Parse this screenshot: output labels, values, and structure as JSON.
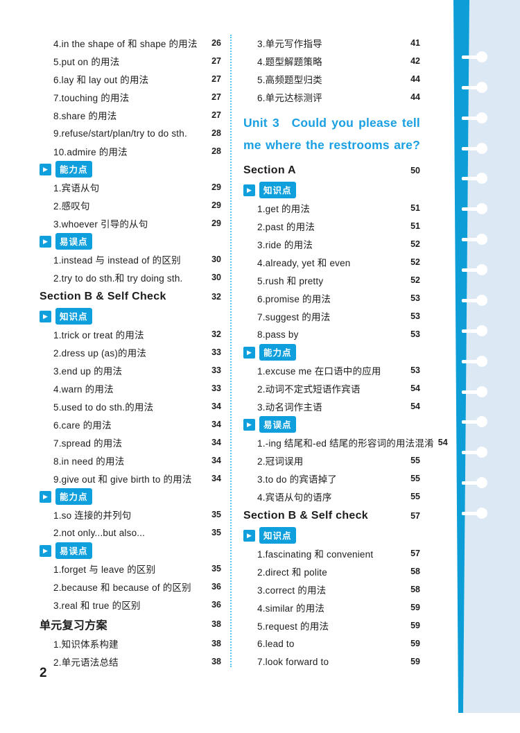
{
  "page": {
    "number": "2"
  },
  "colors": {
    "accent_blue": "#0f9fdc",
    "unit_title_blue": "#1aa0e2",
    "binding_stripe": "#0d9ed8",
    "binding_panel": "#dce9f5",
    "divider_dotted": "#4ec4ee",
    "text": "#1d1d1d"
  },
  "badges": {
    "ability": "能力点",
    "error_prone": "易误点",
    "knowledge": "知识点"
  },
  "columns": {
    "left": {
      "rows": [
        {
          "type": "item",
          "text": "4.in the shape of 和 shape 的用法",
          "page": "26"
        },
        {
          "type": "item",
          "text": "5.put on 的用法",
          "page": "27"
        },
        {
          "type": "item",
          "text": "6.lay 和 lay out 的用法",
          "page": "27"
        },
        {
          "type": "item",
          "text": "7.touching 的用法",
          "page": "27"
        },
        {
          "type": "item",
          "text": "8.share 的用法",
          "page": "27"
        },
        {
          "type": "item",
          "text": "9.refuse/start/plan/try to do sth.",
          "page": "28"
        },
        {
          "type": "item",
          "text": "10.admire 的用法",
          "page": "28"
        },
        {
          "type": "badge",
          "label": "能力点"
        },
        {
          "type": "item",
          "text": "1.宾语从句",
          "page": "29"
        },
        {
          "type": "item",
          "text": "2.感叹句",
          "page": "29"
        },
        {
          "type": "item",
          "text": "3.whoever 引导的从句",
          "page": "29"
        },
        {
          "type": "badge",
          "label": "易误点"
        },
        {
          "type": "item",
          "text": "1.instead 与 instead of 的区别",
          "page": "30"
        },
        {
          "type": "item",
          "text": "2.try to do sth.和 try doing sth.",
          "page": "30"
        },
        {
          "type": "section",
          "text": "Section B & Self Check",
          "page": "32"
        },
        {
          "type": "badge",
          "label": "知识点"
        },
        {
          "type": "item",
          "text": "1.trick or treat 的用法",
          "page": "32"
        },
        {
          "type": "item",
          "text": "2.dress up (as)的用法",
          "page": "33"
        },
        {
          "type": "item",
          "text": "3.end up 的用法",
          "page": "33"
        },
        {
          "type": "item",
          "text": "4.warn 的用法",
          "page": "33"
        },
        {
          "type": "item",
          "text": "5.used to do sth.的用法",
          "page": "34"
        },
        {
          "type": "item",
          "text": "6.care 的用法",
          "page": "34"
        },
        {
          "type": "item",
          "text": "7.spread 的用法",
          "page": "34"
        },
        {
          "type": "item",
          "text": "8.in need 的用法",
          "page": "34"
        },
        {
          "type": "item",
          "text": "9.give out 和 give birth to 的用法",
          "page": "34"
        },
        {
          "type": "badge",
          "label": "能力点"
        },
        {
          "type": "item",
          "text": "1.so 连接的并列句",
          "page": "35"
        },
        {
          "type": "item",
          "text": "2.not only...but also...",
          "page": "35"
        },
        {
          "type": "badge",
          "label": "易误点"
        },
        {
          "type": "item",
          "text": "1.forget 与 leave 的区别",
          "page": "35"
        },
        {
          "type": "item",
          "text": "2.because 和 because of 的区别",
          "page": "36"
        },
        {
          "type": "item",
          "text": "3.real 和 true 的区别",
          "page": "36"
        },
        {
          "type": "section",
          "text": "单元复习方案",
          "page": "38"
        },
        {
          "type": "item",
          "text": "1.知识体系构建",
          "page": "38"
        },
        {
          "type": "item",
          "text": "2.单元语法总结",
          "page": "38"
        }
      ]
    },
    "right": {
      "rows": [
        {
          "type": "item",
          "text": "3.单元写作指导",
          "page": "41"
        },
        {
          "type": "item",
          "text": "4.题型解题策略",
          "page": "42"
        },
        {
          "type": "item",
          "text": "5.高频题型归类",
          "page": "44"
        },
        {
          "type": "item",
          "text": "6.单元达标测评",
          "page": "44"
        },
        {
          "type": "unit",
          "text": "Unit 3 Could you please tell me where the restrooms are?"
        },
        {
          "type": "section",
          "text": "Section A",
          "page": "50"
        },
        {
          "type": "badge",
          "label": "知识点"
        },
        {
          "type": "item",
          "text": "1.get 的用法",
          "page": "51"
        },
        {
          "type": "item",
          "text": "2.past 的用法",
          "page": "51"
        },
        {
          "type": "item",
          "text": "3.ride 的用法",
          "page": "52"
        },
        {
          "type": "item",
          "text": "4.already, yet 和 even",
          "page": "52"
        },
        {
          "type": "item",
          "text": "5.rush 和 pretty",
          "page": "52"
        },
        {
          "type": "item",
          "text": "6.promise 的用法",
          "page": "53"
        },
        {
          "type": "item",
          "text": "7.suggest 的用法",
          "page": "53"
        },
        {
          "type": "item",
          "text": "8.pass by",
          "page": "53"
        },
        {
          "type": "badge",
          "label": "能力点"
        },
        {
          "type": "item",
          "text": "1.excuse me 在口语中的应用",
          "page": "53"
        },
        {
          "type": "item",
          "text": "2.动词不定式短语作宾语",
          "page": "54"
        },
        {
          "type": "item",
          "text": "3.动名词作主语",
          "page": "54"
        },
        {
          "type": "badge",
          "label": "易误点"
        },
        {
          "type": "item",
          "text": "1.-ing 结尾和-ed 结尾的形容词的用法混淆",
          "page": "54"
        },
        {
          "type": "item",
          "text": "2.冠词误用",
          "page": "55"
        },
        {
          "type": "item",
          "text": "3.to do 的宾语掉了",
          "page": "55"
        },
        {
          "type": "item",
          "text": "4.宾语从句的语序",
          "page": "55"
        },
        {
          "type": "section",
          "text": "Section B & Self check",
          "page": "57"
        },
        {
          "type": "badge",
          "label": "知识点"
        },
        {
          "type": "item",
          "text": "1.fascinating 和 convenient",
          "page": "57"
        },
        {
          "type": "item",
          "text": "2.direct 和 polite",
          "page": "58"
        },
        {
          "type": "item",
          "text": "3.correct 的用法",
          "page": "58"
        },
        {
          "type": "item",
          "text": "4.similar 的用法",
          "page": "59"
        },
        {
          "type": "item",
          "text": "5.request 的用法",
          "page": "59"
        },
        {
          "type": "item",
          "text": "6.lead to",
          "page": "59"
        },
        {
          "type": "item",
          "text": "7.look forward to",
          "page": "59"
        }
      ]
    }
  }
}
